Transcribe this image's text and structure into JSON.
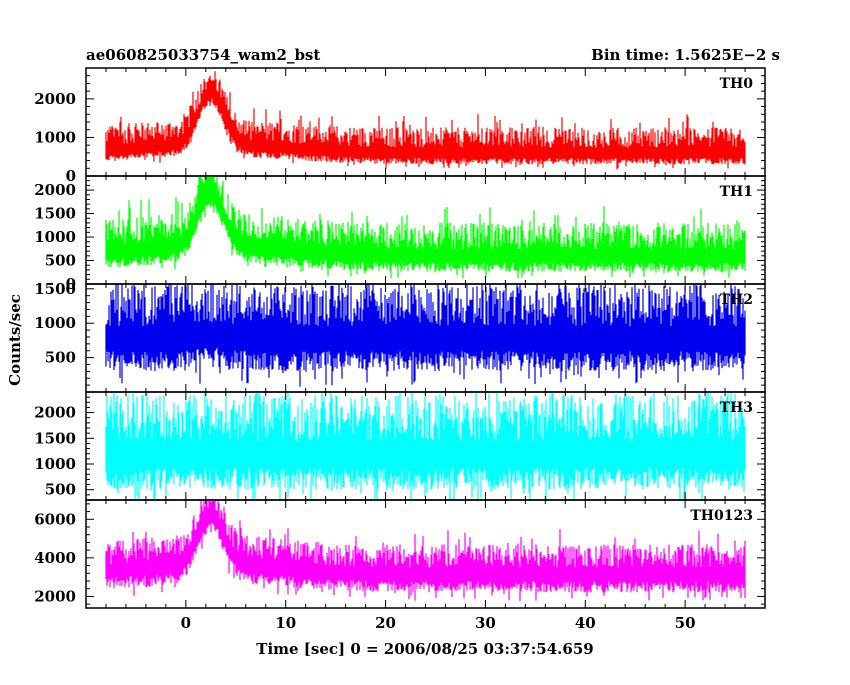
{
  "chart_data": {
    "type": "line",
    "title": "ae060825033754_wam2_bst",
    "bin_time_label": "Bin time: 1.5625E−2 s",
    "xlabel": "Time [sec] 0 = 2006/08/25 03:37:54.659",
    "ylabel": "Counts/sec",
    "xlim": [
      -10,
      58
    ],
    "data_x_range": [
      -8,
      56
    ],
    "x_ticks": [
      0,
      10,
      20,
      30,
      40,
      50
    ],
    "panels": [
      {
        "name": "TH0",
        "color": "#ff0000",
        "ylim": [
          0,
          2800
        ],
        "y_ticks": [
          0,
          1000,
          2000
        ],
        "baseline_median": 560,
        "noise_low": 260,
        "noise_high": 700,
        "peak_time": 2.5,
        "peak_width": 1.8,
        "peak_amplitude": 1350,
        "decay_tail_amplitude": 220,
        "decay_tail_time": 10
      },
      {
        "name": "TH1",
        "color": "#00ff00",
        "ylim": [
          0,
          2300
        ],
        "y_ticks": [
          0,
          500,
          1000,
          1500,
          2000
        ],
        "baseline_median": 560,
        "noise_low": 300,
        "noise_high": 750,
        "peak_time": 2.5,
        "peak_width": 1.8,
        "peak_amplitude": 1150,
        "decay_tail_amplitude": 200,
        "decay_tail_time": 10
      },
      {
        "name": "TH2",
        "color": "#0000ee",
        "ylim": [
          0,
          1570
        ],
        "y_ticks": [
          500,
          1000,
          1500
        ],
        "baseline_median": 750,
        "noise_low": 450,
        "noise_high": 820,
        "peak_time": 2.5,
        "peak_width": 1.8,
        "peak_amplitude": 60,
        "decay_tail_amplitude": 0,
        "decay_tail_time": 10
      },
      {
        "name": "TH3",
        "color": "#00ffff",
        "ylim": [
          300,
          2400
        ],
        "y_ticks": [
          500,
          1000,
          1500,
          2000
        ],
        "baseline_median": 1150,
        "noise_low": 650,
        "noise_high": 1200,
        "peak_time": 2.5,
        "peak_width": 1.8,
        "peak_amplitude": 0,
        "decay_tail_amplitude": 0,
        "decay_tail_time": 10
      },
      {
        "name": "TH0123",
        "color": "#ff00ff",
        "ylim": [
          1400,
          7000
        ],
        "y_ticks": [
          2000,
          4000,
          6000
        ],
        "baseline_median": 3100,
        "noise_low": 900,
        "noise_high": 1600,
        "peak_time": 2.5,
        "peak_width": 1.8,
        "peak_amplitude": 2600,
        "decay_tail_amplitude": 500,
        "decay_tail_time": 10
      }
    ]
  }
}
